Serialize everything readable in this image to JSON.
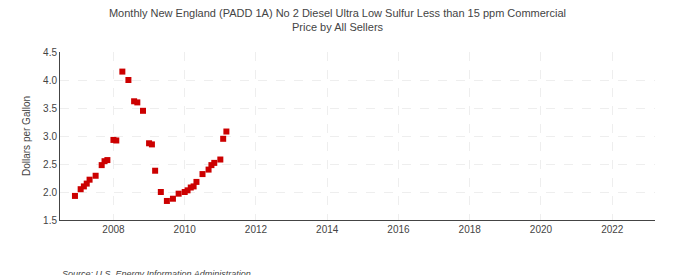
{
  "chart_data": {
    "type": "scatter",
    "title": "Monthly New England (PADD 1A) No 2 Diesel Ultra Low Sulfur Less than 15 ppm Commercial\nPrice by All Sellers",
    "ylabel": "Dollars per Gallon",
    "annotations": [
      "Source: U.S. Energy Information Administration"
    ],
    "marker": "square",
    "color": "#cc0000",
    "grid": true,
    "xlim": [
      2006.5,
      2023.2
    ],
    "ylim": [
      1.5,
      4.5
    ],
    "xticks": [
      2008,
      2010,
      2012,
      2014,
      2016,
      2018,
      2020,
      2022
    ],
    "yticks": [
      1.5,
      {
        "value": 2,
        "label": "2.0"
      },
      2.5,
      {
        "value": 3,
        "label": "3.0"
      },
      3.5,
      {
        "value": 4,
        "label": "4.0"
      },
      4.5
    ],
    "x": [
      2006.92,
      2007.08,
      2007.17,
      2007.25,
      2007.33,
      2007.5,
      2007.67,
      2007.75,
      2007.83,
      2008.0,
      2008.08,
      2008.25,
      2008.42,
      2008.58,
      2008.67,
      2008.83,
      2009.0,
      2009.08,
      2009.17,
      2009.33,
      2009.5,
      2009.67,
      2009.83,
      2010.0,
      2010.08,
      2010.17,
      2010.25,
      2010.33,
      2010.5,
      2010.67,
      2010.75,
      2010.83,
      2011.0,
      2011.08,
      2011.17
    ],
    "values": [
      1.93,
      2.05,
      2.1,
      2.15,
      2.22,
      2.29,
      2.48,
      2.55,
      2.57,
      2.93,
      2.92,
      4.15,
      4.0,
      3.62,
      3.6,
      3.45,
      2.87,
      2.85,
      2.38,
      2.0,
      1.84,
      1.88,
      1.97,
      2.0,
      2.03,
      2.08,
      2.1,
      2.18,
      2.32,
      2.4,
      2.48,
      2.52,
      2.58,
      2.95,
      3.08
    ]
  }
}
